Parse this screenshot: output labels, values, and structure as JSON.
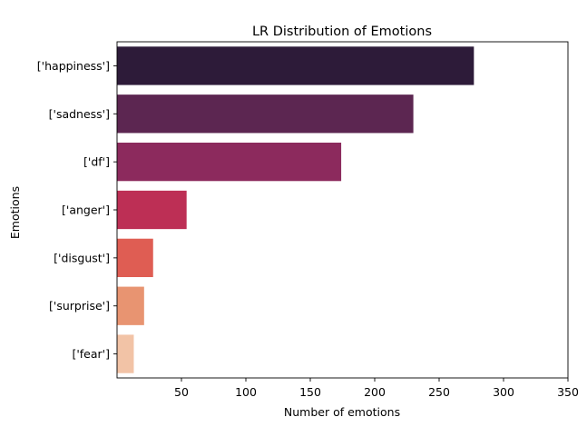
{
  "chart_data": {
    "type": "bar",
    "orientation": "horizontal",
    "title": "LR Distribution of Emotions",
    "xlabel": "Number of emotions",
    "ylabel": "Emotions",
    "categories": [
      "['happiness']",
      "['sadness']",
      "['df']",
      "['anger']",
      "['disgust']",
      "['surprise']",
      "['fear']"
    ],
    "values": [
      277,
      230,
      174,
      54,
      28,
      21,
      13
    ],
    "colors": [
      "#2d1b39",
      "#5c2651",
      "#8c2a5d",
      "#bd2f55",
      "#df5d53",
      "#e89471",
      "#f2c3a6"
    ],
    "xlim": [
      0,
      350
    ],
    "xticks": [
      50,
      100,
      150,
      200,
      250,
      300,
      350
    ],
    "grid": false,
    "legend": "none"
  }
}
